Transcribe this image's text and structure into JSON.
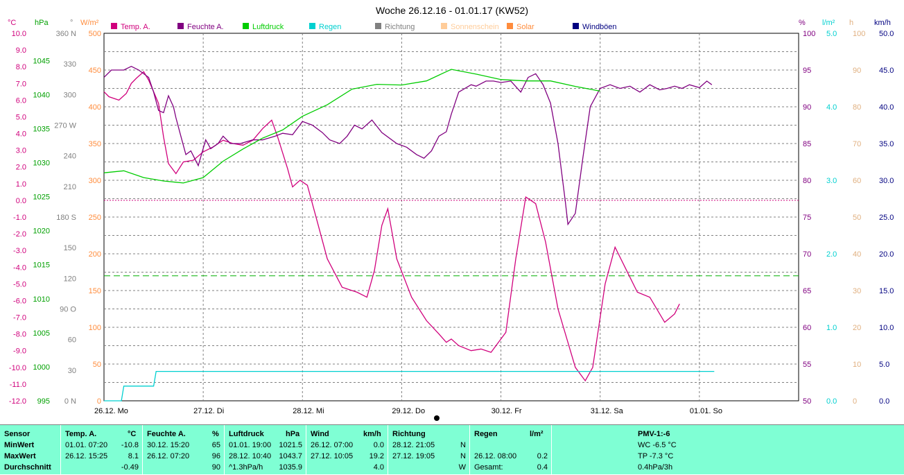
{
  "title": "Woche 26.12.16 - 01.01.17 (KW52)",
  "colors": {
    "temp": "#d0007c",
    "feuchte": "#800080",
    "luftdruck": "#00cc00",
    "regen": "#00d0d0",
    "richtung": "#808080",
    "sonnenschein": "#ffcc99",
    "solar": "#ff8c3c",
    "windboeen": "#000080",
    "panel": "#7fffd4"
  },
  "chart_data": {
    "type": "line",
    "title": "Woche 26.12.16 - 01.01.17 (KW52)",
    "x_labels": [
      "26.12. Mo",
      "27.12. Di",
      "28.12. Mi",
      "29.12. Do",
      "30.12. Fr",
      "31.12. Sa",
      "01.01. So"
    ],
    "legend": [
      "Temp. A.",
      "Feuchte A.",
      "Luftdruck",
      "Regen",
      "Richtung",
      "Sonnenschein",
      "Solar",
      "Windböen"
    ],
    "axes": {
      "temp": {
        "unit": "°C",
        "range": [
          -12,
          10
        ],
        "ticks": [
          "10.0",
          "9.0",
          "8.0",
          "7.0",
          "6.0",
          "5.0",
          "4.0",
          "3.0",
          "2.0",
          "1.0",
          "0.0",
          "-1.0",
          "-2.0",
          "-3.0",
          "-4.0",
          "-5.0",
          "-6.0",
          "-7.0",
          "-8.0",
          "-9.0",
          "-10.0",
          "-11.0",
          "-12.0"
        ]
      },
      "pressure": {
        "unit": "hPa",
        "range": [
          995,
          1049
        ],
        "ticks": [
          "1045",
          "1040",
          "1035",
          "1030",
          "1025",
          "1020",
          "1015",
          "1010",
          "1005",
          "1000",
          "995"
        ]
      },
      "direction": {
        "unit": "°",
        "range": [
          0,
          360
        ],
        "ticks": [
          "360 N",
          "330",
          "300",
          "270 W",
          "240",
          "210",
          "180 S",
          "150",
          "120",
          "90 O",
          "60",
          "30",
          "0 N"
        ]
      },
      "solar": {
        "unit": "W/m²",
        "range": [
          0,
          500
        ],
        "ticks": [
          "500",
          "450",
          "400",
          "350",
          "300",
          "250",
          "200",
          "150",
          "100",
          "50",
          "0"
        ]
      },
      "humidity": {
        "unit": "%",
        "range": [
          50,
          100
        ],
        "ticks": [
          "100",
          "95",
          "90",
          "85",
          "80",
          "75",
          "70",
          "65",
          "60",
          "55",
          "50"
        ]
      },
      "rain": {
        "unit": "l/m²",
        "range": [
          0,
          5
        ],
        "ticks": [
          "5.0",
          "4.0",
          "3.0",
          "2.0",
          "1.0",
          "0.0"
        ]
      },
      "sunshine": {
        "unit": "h",
        "range": [
          0,
          100
        ],
        "ticks": [
          "100",
          "90",
          "80",
          "70",
          "60",
          "50",
          "40",
          "30",
          "20",
          "10",
          "0"
        ]
      },
      "wind": {
        "unit": "km/h",
        "range": [
          0,
          50
        ],
        "ticks": [
          "50.0",
          "45.0",
          "40.0",
          "35.0",
          "30.0",
          "25.0",
          "20.0",
          "15.0",
          "10.0",
          "5.0",
          "0.0"
        ]
      }
    },
    "reference_lines": {
      "temp_zero": 0.0,
      "humidity_avg": 67
    },
    "series": [
      {
        "name": "Temp. A.",
        "axis": "temp",
        "points": [
          [
            0,
            6.5
          ],
          [
            0.1,
            6.2
          ],
          [
            0.3,
            6.0
          ],
          [
            0.45,
            6.4
          ],
          [
            0.55,
            7.0
          ],
          [
            0.65,
            7.3
          ],
          [
            0.8,
            7.7
          ],
          [
            0.9,
            7.2
          ],
          [
            1.0,
            6.5
          ],
          [
            1.1,
            5.8
          ],
          [
            1.2,
            3.8
          ],
          [
            1.3,
            2.2
          ],
          [
            1.45,
            1.6
          ],
          [
            1.6,
            2.3
          ],
          [
            1.8,
            2.4
          ],
          [
            2.0,
            2.9
          ],
          [
            2.2,
            3.2
          ],
          [
            2.4,
            3.6
          ],
          [
            2.6,
            3.4
          ],
          [
            2.8,
            3.3
          ],
          [
            3.0,
            3.6
          ],
          [
            3.2,
            4.3
          ],
          [
            3.38,
            4.8
          ],
          [
            3.5,
            3.8
          ],
          [
            3.7,
            1.9
          ],
          [
            3.8,
            0.8
          ],
          [
            3.95,
            1.2
          ],
          [
            4.1,
            0.9
          ],
          [
            4.3,
            -1.3
          ],
          [
            4.5,
            -3.5
          ],
          [
            4.8,
            -5.2
          ],
          [
            5.1,
            -5.5
          ],
          [
            5.3,
            -5.8
          ],
          [
            5.45,
            -4.2
          ],
          [
            5.6,
            -1.5
          ],
          [
            5.72,
            -0.5
          ],
          [
            5.9,
            -3.5
          ],
          [
            6.2,
            -5.8
          ],
          [
            6.5,
            -7.2
          ],
          [
            6.75,
            -8.0
          ],
          [
            6.9,
            -8.5
          ],
          [
            7.0,
            -8.3
          ],
          [
            7.15,
            -8.7
          ],
          [
            7.4,
            -9.0
          ],
          [
            7.6,
            -8.9
          ],
          [
            7.8,
            -9.1
          ],
          [
            8.1,
            -7.9
          ],
          [
            8.3,
            -3.5
          ],
          [
            8.5,
            0.2
          ],
          [
            8.7,
            -0.2
          ],
          [
            8.9,
            -2.5
          ],
          [
            9.15,
            -6.5
          ],
          [
            9.5,
            -10.0
          ],
          [
            9.7,
            -10.8
          ],
          [
            9.85,
            -10.0
          ],
          [
            10.1,
            -5.0
          ],
          [
            10.3,
            -2.8
          ],
          [
            10.5,
            -4.0
          ],
          [
            10.75,
            -5.5
          ],
          [
            11.0,
            -5.8
          ],
          [
            11.3,
            -7.3
          ],
          [
            11.5,
            -6.8
          ],
          [
            11.6,
            -6.2
          ]
        ]
      },
      {
        "name": "Feuchte A.",
        "axis": "humidity",
        "points": [
          [
            0,
            94
          ],
          [
            0.15,
            95
          ],
          [
            0.4,
            95
          ],
          [
            0.55,
            95.5
          ],
          [
            0.7,
            95
          ],
          [
            0.9,
            94
          ],
          [
            1.0,
            92
          ],
          [
            1.1,
            89.5
          ],
          [
            1.2,
            89.2
          ],
          [
            1.3,
            91.5
          ],
          [
            1.4,
            90
          ],
          [
            1.45,
            88.5
          ],
          [
            1.55,
            86
          ],
          [
            1.65,
            83.5
          ],
          [
            1.75,
            84
          ],
          [
            1.9,
            82
          ],
          [
            2.05,
            85.5
          ],
          [
            2.15,
            84.3
          ],
          [
            2.3,
            85
          ],
          [
            2.4,
            86
          ],
          [
            2.55,
            85
          ],
          [
            2.75,
            85
          ],
          [
            3.0,
            85.5
          ],
          [
            3.2,
            85.5
          ],
          [
            3.45,
            86
          ],
          [
            3.6,
            86.4
          ],
          [
            3.8,
            86.2
          ],
          [
            4.0,
            88
          ],
          [
            4.2,
            87.5
          ],
          [
            4.4,
            86.5
          ],
          [
            4.55,
            85.5
          ],
          [
            4.75,
            85
          ],
          [
            4.9,
            86
          ],
          [
            5.05,
            87.5
          ],
          [
            5.2,
            87
          ],
          [
            5.4,
            88.2
          ],
          [
            5.6,
            86.5
          ],
          [
            5.9,
            85
          ],
          [
            6.1,
            84.5
          ],
          [
            6.3,
            83.5
          ],
          [
            6.45,
            83
          ],
          [
            6.6,
            84
          ],
          [
            6.75,
            86
          ],
          [
            6.9,
            86.6
          ],
          [
            7.0,
            89
          ],
          [
            7.15,
            92
          ],
          [
            7.4,
            93
          ],
          [
            7.5,
            92.8
          ],
          [
            7.7,
            93.5
          ],
          [
            7.85,
            93.5
          ],
          [
            8.0,
            93.3
          ],
          [
            8.2,
            93.5
          ],
          [
            8.4,
            92
          ],
          [
            8.55,
            94
          ],
          [
            8.7,
            94.5
          ],
          [
            8.85,
            93
          ],
          [
            9.0,
            90.5
          ],
          [
            9.15,
            85
          ],
          [
            9.3,
            77
          ],
          [
            9.35,
            74
          ],
          [
            9.5,
            75.5
          ],
          [
            9.65,
            83
          ],
          [
            9.8,
            90
          ],
          [
            10.0,
            92.5
          ],
          [
            10.2,
            93
          ],
          [
            10.4,
            92.5
          ],
          [
            10.6,
            92.8
          ],
          [
            10.8,
            92
          ],
          [
            11.0,
            93
          ],
          [
            11.2,
            92.3
          ],
          [
            11.35,
            92.5
          ],
          [
            11.5,
            92.8
          ],
          [
            11.65,
            92.5
          ],
          [
            11.8,
            93
          ],
          [
            12.0,
            92.6
          ],
          [
            12.15,
            93.5
          ],
          [
            12.25,
            93
          ]
        ]
      },
      {
        "name": "Luftdruck",
        "axis": "pressure",
        "points": [
          [
            0,
            1028.5
          ],
          [
            0.4,
            1028.8
          ],
          [
            0.8,
            1027.8
          ],
          [
            1.2,
            1027.3
          ],
          [
            1.6,
            1027.0
          ],
          [
            2.0,
            1027.8
          ],
          [
            2.4,
            1030.2
          ],
          [
            2.8,
            1032.0
          ],
          [
            3.2,
            1033.6
          ],
          [
            3.6,
            1034.8
          ],
          [
            4.0,
            1036.8
          ],
          [
            4.5,
            1038.5
          ],
          [
            5.0,
            1040.8
          ],
          [
            5.5,
            1041.5
          ],
          [
            6.0,
            1041.4
          ],
          [
            6.5,
            1042.0
          ],
          [
            7.0,
            1043.7
          ],
          [
            7.5,
            1043.0
          ],
          [
            8.0,
            1042.2
          ],
          [
            8.5,
            1042.0
          ],
          [
            9.0,
            1042.0
          ],
          [
            9.5,
            1041.2
          ],
          [
            10.0,
            1040.5
          ]
        ]
      },
      {
        "name": "Regen",
        "axis": "rain",
        "points": [
          [
            0,
            0.0
          ],
          [
            0.35,
            0.0
          ],
          [
            0.4,
            0.2
          ],
          [
            0.6,
            0.2
          ],
          [
            0.8,
            0.2
          ],
          [
            1.0,
            0.2
          ],
          [
            1.05,
            0.4
          ],
          [
            1.2,
            0.4
          ],
          [
            12.3,
            0.4
          ]
        ]
      }
    ]
  },
  "stats": {
    "sensor": {
      "header": "Sensor",
      "rows": [
        "MinWert",
        "MaxWert",
        "Durchschnitt"
      ]
    },
    "temp": {
      "header": "Temp. A.",
      "unit": "°C",
      "min_time": "01.01.  07:20",
      "min_val": "-10.8",
      "max_time": "26.12.  15:25",
      "max_val": "8.1",
      "avg": "-0.49"
    },
    "feuchte": {
      "header": "Feuchte A.",
      "unit": "%",
      "min_time": "30.12.  15:20",
      "min_val": "65",
      "max_time": "26.12.  07:20",
      "max_val": "96",
      "avg": "90"
    },
    "luftdruck": {
      "header": "Luftdruck",
      "unit": "hPa",
      "min_time": "01.01.  19:00",
      "min_val": "1021.5",
      "max_time": "28.12.  10:40",
      "max_val": "1043.7",
      "avg_label": "^1.3hPa/h",
      "avg": "1035.9"
    },
    "wind": {
      "header": "Wind",
      "unit": "km/h",
      "min_time": "26.12.  07:00",
      "min_val": "0.0",
      "max_time": "27.12.  10:05",
      "max_val": "19.2",
      "avg": "4.0"
    },
    "richtung": {
      "header": "Richtung",
      "min_time": "28.12.  21:05",
      "min_val": "N",
      "max_time": "27.12.  19:05",
      "max_val": "N",
      "avg": "W"
    },
    "regen": {
      "header": "Regen",
      "unit": "l/m²",
      "max_time": "26.12.  08:00",
      "max_val": "0.2",
      "total_label": "Gesamt:",
      "total": "0.4"
    },
    "pmv": {
      "header": "PMV-1:-6",
      "wc": "WC -6.5 °C",
      "tp": "TP -7.3 °C",
      "trend": "0.4hPa/3h"
    }
  }
}
